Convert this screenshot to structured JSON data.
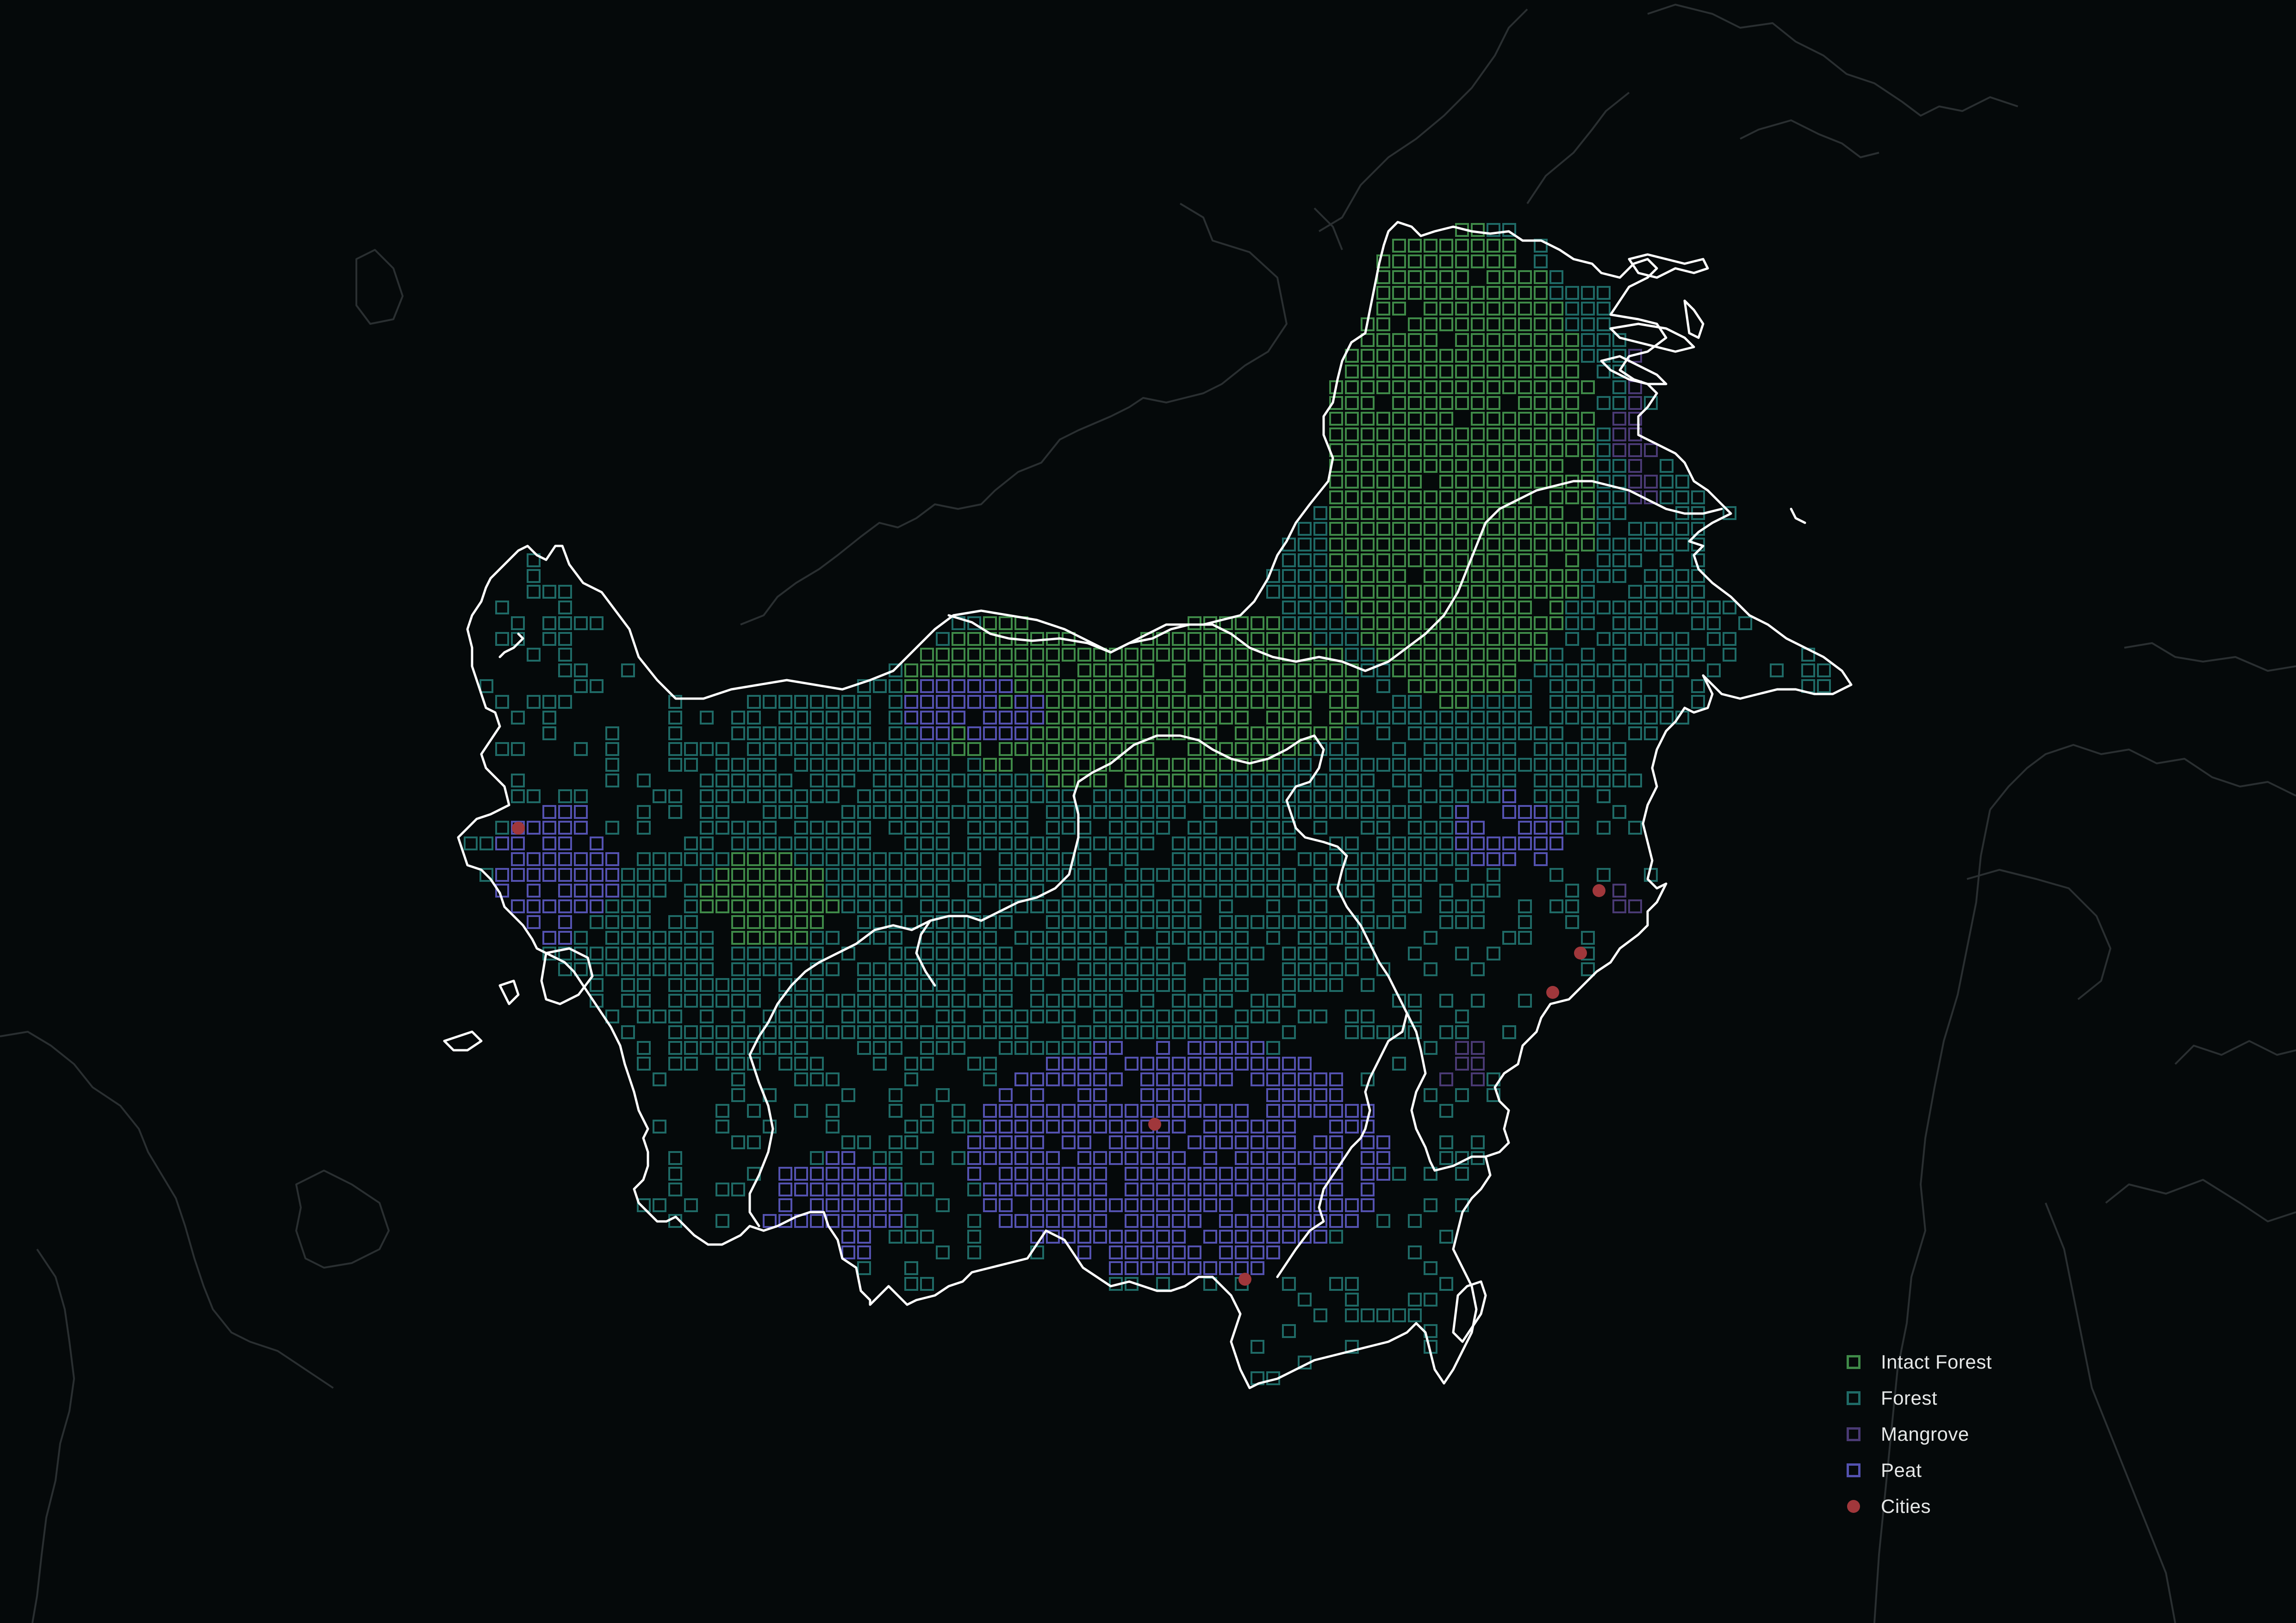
{
  "legend": {
    "items": [
      {
        "label": "Intact Forest",
        "color": "#3f8a48",
        "shape": "square"
      },
      {
        "label": "Forest",
        "color": "#1f6a66",
        "shape": "square"
      },
      {
        "label": "Mangrove",
        "color": "#4a3a74",
        "shape": "square"
      },
      {
        "label": "Peat",
        "color": "#5452b0",
        "shape": "square"
      },
      {
        "label": "Cities",
        "color": "#a0373b",
        "shape": "circle"
      }
    ]
  },
  "colors": {
    "background": "#05090a",
    "coastline": "#ffffff",
    "context_lines": "#2a2f31"
  }
}
